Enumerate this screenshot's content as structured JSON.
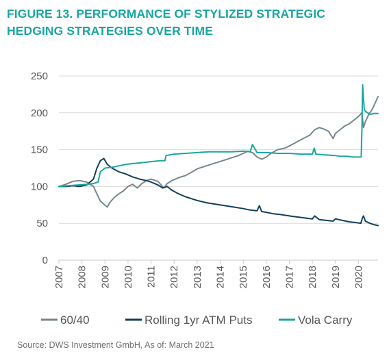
{
  "title_lines": [
    "FIGURE 13. PERFORMANCE OF STYLIZED STRATEGIC",
    "HEDGING STRATEGIES OVER TIME"
  ],
  "source": "Source: DWS Investment GmbH, As of: March 2021",
  "chart_data": {
    "type": "line",
    "title": "FIGURE 13. PERFORMANCE OF STYLIZED STRATEGIC HEDGING STRATEGIES OVER TIME",
    "xlabel": "",
    "ylabel": "",
    "xlim": [
      2007.0,
      2020.85
    ],
    "ylim": [
      0,
      250
    ],
    "yticks": [
      0,
      50,
      100,
      150,
      200,
      250
    ],
    "xticks": [
      "2007",
      "2008",
      "2009",
      "2010",
      "2011",
      "2012",
      "2013",
      "2014",
      "2015",
      "2016",
      "2017",
      "2018",
      "2019",
      "2020"
    ],
    "grid": "horizontal",
    "legend_position": "bottom",
    "series": [
      {
        "name": "60/40",
        "color": "#76868c",
        "x": [
          2007.0,
          2007.3,
          2007.6,
          2007.9,
          2008.2,
          2008.5,
          2008.65,
          2008.8,
          2008.95,
          2009.1,
          2009.2,
          2009.4,
          2009.6,
          2009.8,
          2010.0,
          2010.2,
          2010.4,
          2010.6,
          2010.8,
          2011.0,
          2011.3,
          2011.55,
          2011.7,
          2011.9,
          2012.2,
          2012.5,
          2012.8,
          2013.0,
          2013.3,
          2013.6,
          2013.9,
          2014.2,
          2014.5,
          2014.8,
          2015.0,
          2015.2,
          2015.4,
          2015.6,
          2015.8,
          2016.0,
          2016.2,
          2016.5,
          2016.8,
          2017.0,
          2017.3,
          2017.6,
          2017.9,
          2018.1,
          2018.3,
          2018.5,
          2018.7,
          2018.9,
          2019.0,
          2019.2,
          2019.4,
          2019.6,
          2019.8,
          2020.0,
          2020.15,
          2020.22,
          2020.3,
          2020.45,
          2020.6,
          2020.75,
          2020.85
        ],
        "y": [
          100,
          103,
          107,
          108,
          106,
          100,
          90,
          80,
          76,
          72,
          78,
          85,
          90,
          94,
          100,
          103,
          98,
          104,
          108,
          110,
          107,
          98,
          104,
          108,
          112,
          115,
          120,
          124,
          127,
          130,
          133,
          136,
          139,
          142,
          145,
          148,
          146,
          140,
          137,
          140,
          145,
          150,
          152,
          155,
          160,
          165,
          170,
          177,
          180,
          178,
          175,
          165,
          172,
          177,
          182,
          185,
          190,
          195,
          200,
          180,
          188,
          198,
          205,
          215,
          222
        ]
      },
      {
        "name": "Rolling 1yr ATM Puts",
        "color": "#123e5a",
        "x": [
          2007.0,
          2007.3,
          2007.6,
          2007.9,
          2008.2,
          2008.5,
          2008.65,
          2008.8,
          2008.95,
          2009.1,
          2009.3,
          2009.6,
          2009.9,
          2010.2,
          2010.5,
          2010.8,
          2011.0,
          2011.3,
          2011.5,
          2011.7,
          2011.9,
          2012.2,
          2012.5,
          2012.8,
          2013.0,
          2013.4,
          2013.8,
          2014.2,
          2014.6,
          2015.0,
          2015.3,
          2015.6,
          2015.7,
          2015.8,
          2016.0,
          2016.3,
          2016.6,
          2017.0,
          2017.5,
          2018.0,
          2018.1,
          2018.3,
          2018.6,
          2018.9,
          2019.0,
          2019.3,
          2019.6,
          2019.9,
          2020.1,
          2020.18,
          2020.22,
          2020.3,
          2020.5,
          2020.7,
          2020.85
        ],
        "y": [
          100,
          100,
          101,
          100,
          102,
          110,
          125,
          135,
          138,
          130,
          125,
          120,
          117,
          113,
          110,
          108,
          106,
          102,
          98,
          100,
          95,
          90,
          86,
          83,
          81,
          78,
          76,
          74,
          72,
          70,
          68,
          67,
          74,
          66,
          65,
          63,
          62,
          60,
          58,
          56,
          60,
          55,
          54,
          53,
          56,
          54,
          52,
          51,
          50,
          58,
          60,
          53,
          50,
          48,
          47
        ]
      },
      {
        "name": "Vola Carry",
        "color": "#1aa5a0",
        "x": [
          2007.0,
          2007.4,
          2007.8,
          2008.2,
          2008.5,
          2008.7,
          2008.8,
          2009.0,
          2009.3,
          2009.6,
          2009.9,
          2010.2,
          2010.5,
          2010.8,
          2011.1,
          2011.4,
          2011.6,
          2011.65,
          2012.0,
          2012.5,
          2013.0,
          2013.5,
          2014.0,
          2014.5,
          2015.0,
          2015.3,
          2015.4,
          2015.6,
          2016.0,
          2016.5,
          2017.0,
          2017.5,
          2018.0,
          2018.08,
          2018.15,
          2018.5,
          2019.0,
          2019.2,
          2019.5,
          2019.8,
          2020.0,
          2020.12,
          2020.15,
          2020.18,
          2020.25,
          2020.3,
          2020.4,
          2020.5,
          2020.7,
          2020.85
        ],
        "y": [
          100,
          101,
          102,
          103,
          104,
          106,
          120,
          125,
          126,
          128,
          130,
          131,
          132,
          133,
          134,
          135,
          135,
          142,
          144,
          145,
          146,
          147,
          147,
          147,
          148,
          147,
          157,
          146,
          146,
          145,
          145,
          144,
          144,
          152,
          144,
          143,
          142,
          141,
          141,
          140,
          140,
          140,
          175,
          238,
          205,
          202,
          200,
          198,
          199,
          199
        ]
      }
    ]
  }
}
